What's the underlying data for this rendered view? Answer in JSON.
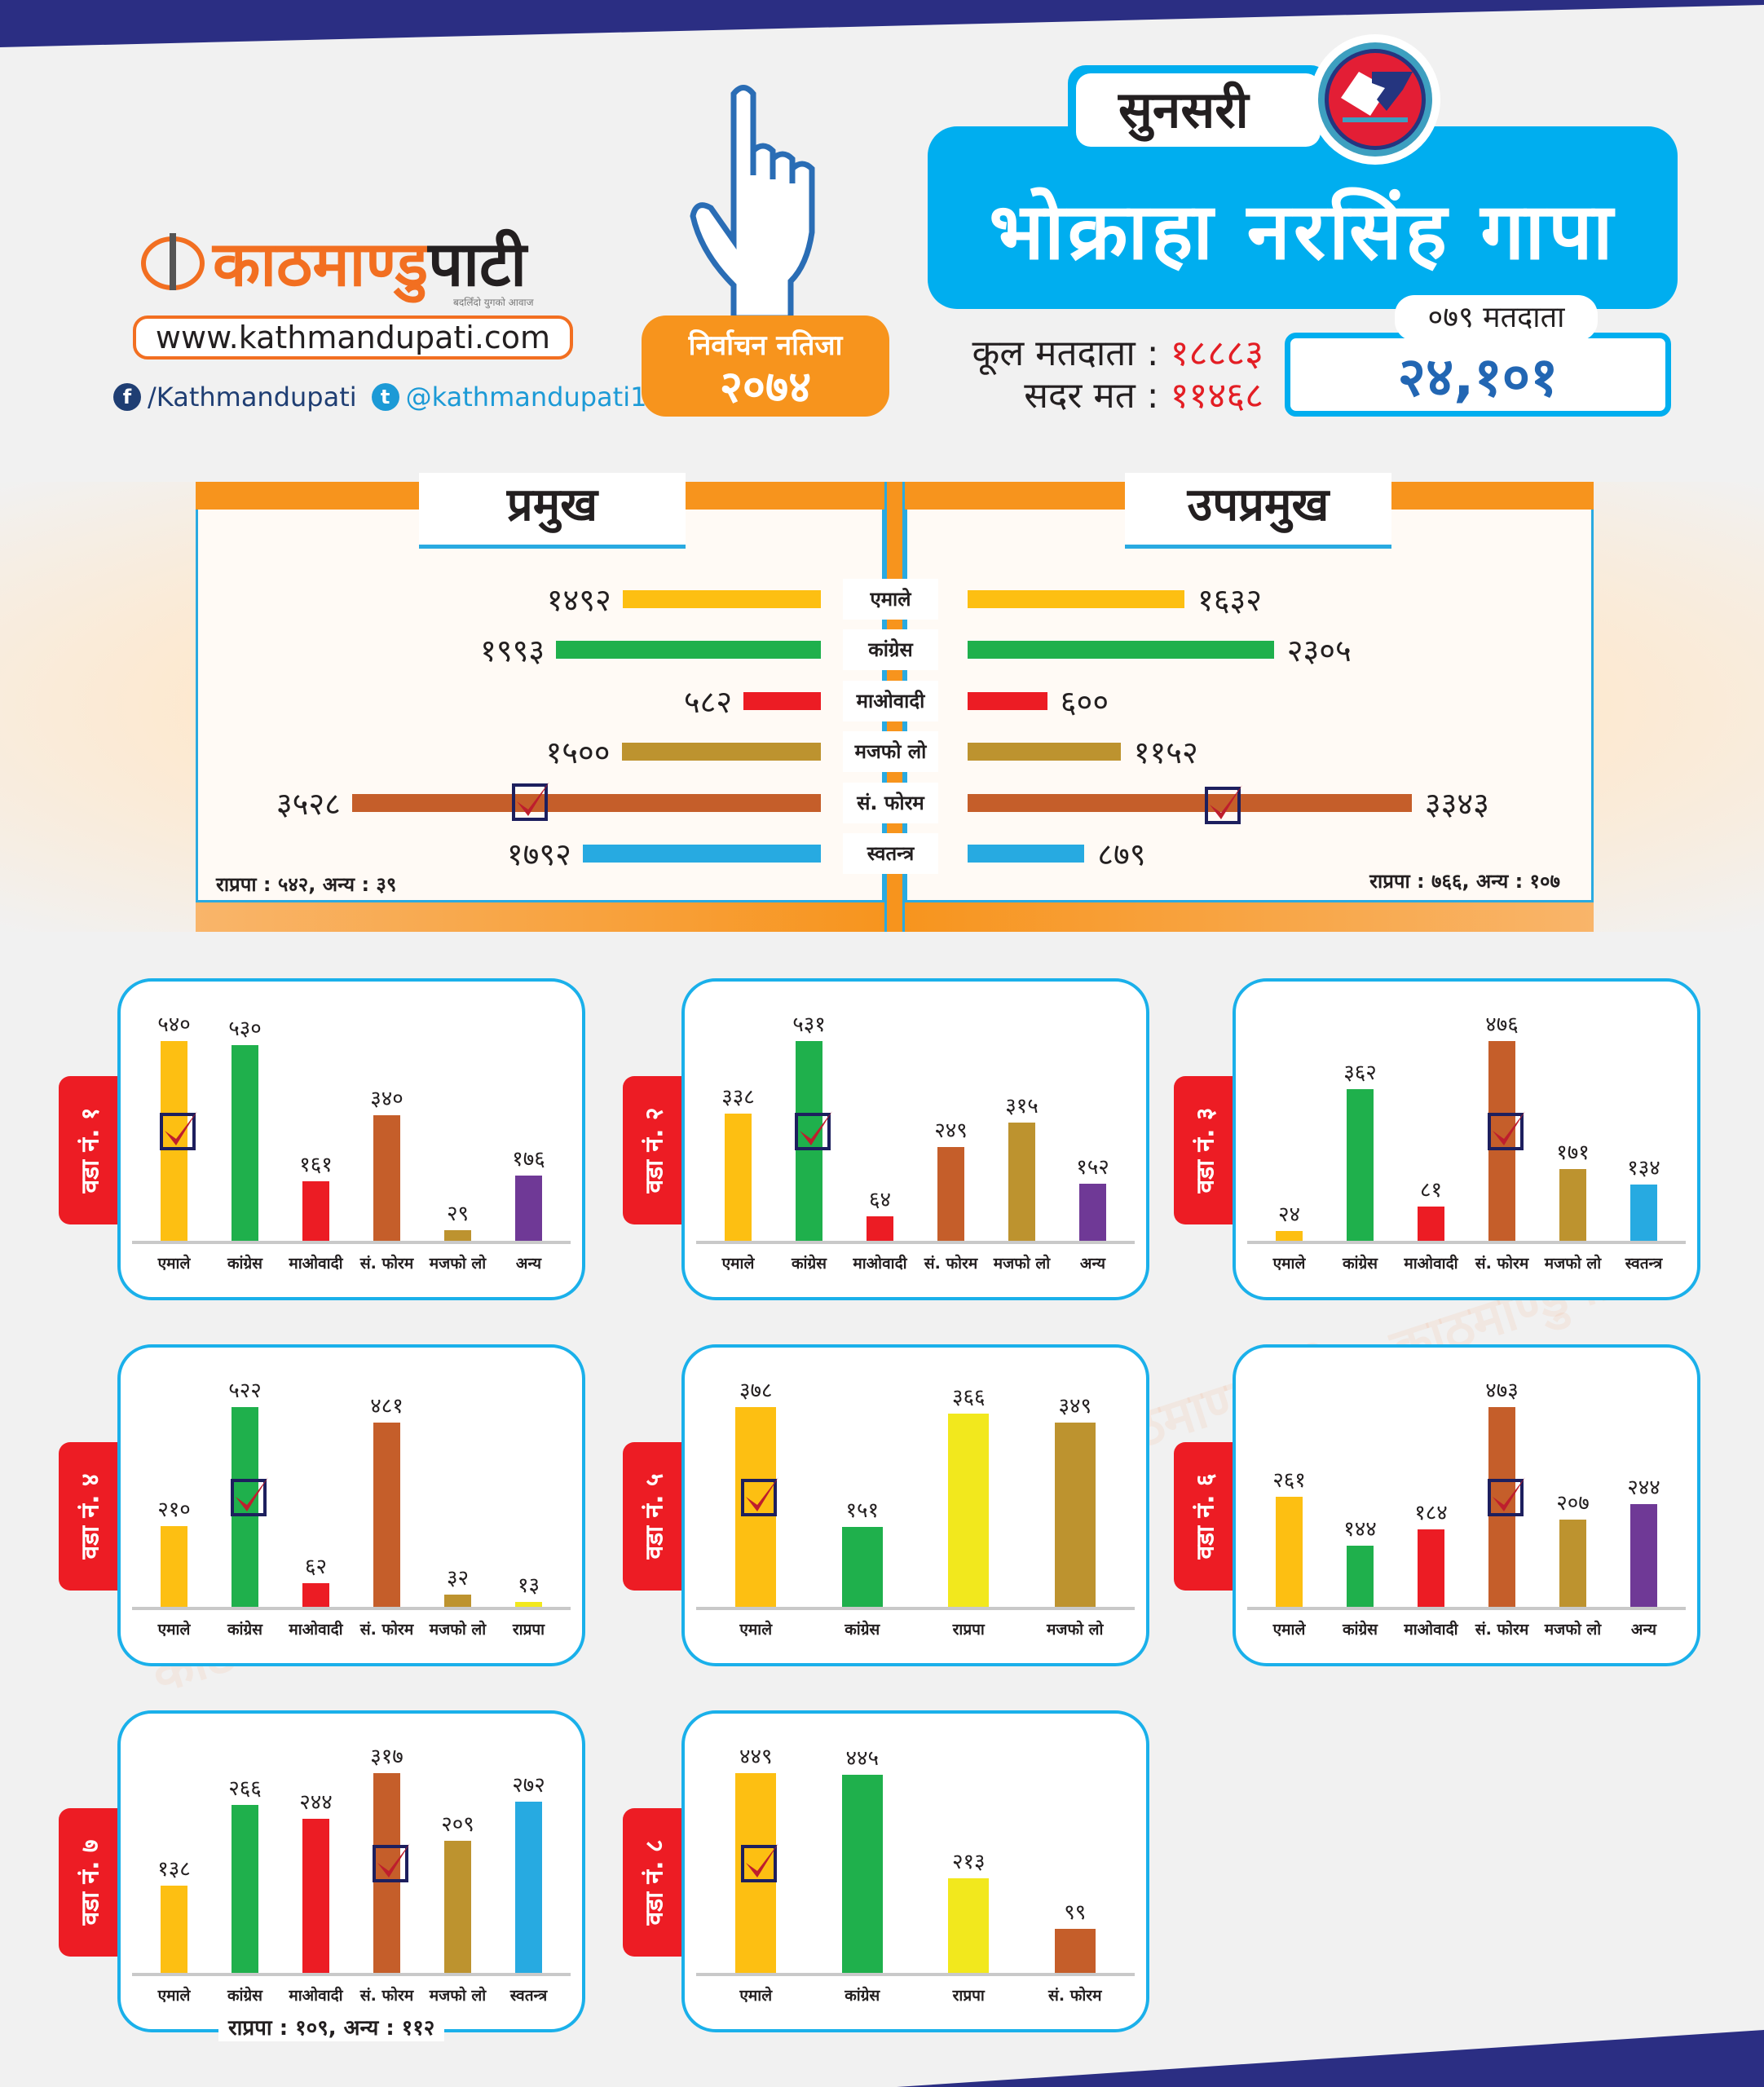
{
  "brand": {
    "logo_text_orange": "काठमाण्डु",
    "logo_text_black": "पाटी",
    "tagline": "बदलिँदो युगको आवाज",
    "url": "www.kathmandupati.com",
    "facebook": "/Kathmandupati",
    "twitter": "@kathmandupati1",
    "watermark": "काठमाण्डुपाटी"
  },
  "badge": {
    "line1": "निर्वाचन नतिजा",
    "line2": "२०७४"
  },
  "header": {
    "district": "सुनसरी",
    "municipality": "भोक्राहा नरसिंह गापा",
    "total_voters_label": "कूल मतदाता :",
    "total_voters": "१८८८३",
    "valid_votes_label": "सदर मत :",
    "valid_votes": "११४६८",
    "voters_079_label": "०७९ मतदाता",
    "voters_079": "२४,१०१"
  },
  "colors": {
    "एमाले": "#fdbf12",
    "कांग्रेस": "#1fb04c",
    "माओवादी": "#ec1c24",
    "मजफो लो": "#bd932f",
    "सं. फोरम": "#c55e2a",
    "स्वतन्त्र": "#27aae1",
    "अन्य": "#6f3996",
    "राप्रपा": "#f2e81d"
  },
  "chart_data": [
    {
      "type": "bar",
      "title": "प्रमुख / उपप्रमुख",
      "categories": [
        "एमाले",
        "कांग्रेस",
        "माओवादी",
        "मजफो लो",
        "सं. फोरम",
        "स्वतन्त्र"
      ],
      "series": [
        {
          "name": "प्रमुख",
          "values": [
            1492,
            1993,
            582,
            1500,
            3528,
            1792
          ],
          "value_labels": [
            "१४९२",
            "१९९३",
            "५८२",
            "१५००",
            "३५२८",
            "१७९२"
          ],
          "winner": "सं. फोरम",
          "note": "राप्रपा : ५४२, अन्य : ३९"
        },
        {
          "name": "उपप्रमुख",
          "values": [
            1632,
            2305,
            600,
            1152,
            3343,
            879
          ],
          "value_labels": [
            "१६३२",
            "२३०५",
            "६००",
            "११५२",
            "३३४३",
            "८७९"
          ],
          "winner": "सं. फोरम",
          "note": "राप्रपा : ७६६, अन्य : १०७"
        }
      ]
    },
    {
      "type": "bar",
      "title": "वडा नं. १",
      "categories": [
        "एमाले",
        "कांग्रेस",
        "माओवादी",
        "सं. फोरम",
        "मजफो लो",
        "अन्य"
      ],
      "values": [
        540,
        530,
        161,
        340,
        29,
        176
      ],
      "value_labels": [
        "५४०",
        "५३०",
        "१६१",
        "३४०",
        "२९",
        "१७६"
      ],
      "winner": "एमाले"
    },
    {
      "type": "bar",
      "title": "वडा नं. २",
      "categories": [
        "एमाले",
        "कांग्रेस",
        "माओवादी",
        "सं. फोरम",
        "मजफो लो",
        "अन्य"
      ],
      "values": [
        338,
        531,
        64,
        249,
        315,
        152
      ],
      "value_labels": [
        "३३८",
        "५३१",
        "६४",
        "२४९",
        "३१५",
        "१५२"
      ],
      "winner": "कांग्रेस"
    },
    {
      "type": "bar",
      "title": "वडा नं. ३",
      "categories": [
        "एमाले",
        "कांग्रेस",
        "माओवादी",
        "सं. फोरम",
        "मजफो लो",
        "स्वतन्त्र"
      ],
      "values": [
        24,
        362,
        81,
        476,
        171,
        134
      ],
      "value_labels": [
        "२४",
        "३६२",
        "८१",
        "४७६",
        "१७१",
        "१३४"
      ],
      "winner": "सं. फोरम"
    },
    {
      "type": "bar",
      "title": "वडा नं. ४",
      "categories": [
        "एमाले",
        "कांग्रेस",
        "माओवादी",
        "सं. फोरम",
        "मजफो लो",
        "राप्रपा"
      ],
      "values": [
        210,
        522,
        62,
        481,
        32,
        13
      ],
      "value_labels": [
        "२१०",
        "५२२",
        "६२",
        "४८१",
        "३२",
        "१३"
      ],
      "winner": "कांग्रेस"
    },
    {
      "type": "bar",
      "title": "वडा नं. ५",
      "categories": [
        "एमाले",
        "कांग्रेस",
        "राप्रपा",
        "मजफो लो"
      ],
      "values": [
        378,
        151,
        366,
        349
      ],
      "value_labels": [
        "३७८",
        "१५१",
        "३६६",
        "३४९"
      ],
      "winner": "एमाले"
    },
    {
      "type": "bar",
      "title": "वडा नं. ६",
      "categories": [
        "एमाले",
        "कांग्रेस",
        "माओवादी",
        "सं. फोरम",
        "मजफो लो",
        "अन्य"
      ],
      "values": [
        261,
        144,
        184,
        473,
        207,
        244
      ],
      "value_labels": [
        "२६१",
        "१४४",
        "१८४",
        "४७३",
        "२०७",
        "२४४"
      ],
      "winner": "सं. फोरम"
    },
    {
      "type": "bar",
      "title": "वडा नं. ७",
      "categories": [
        "एमाले",
        "कांग्रेस",
        "माओवादी",
        "सं. फोरम",
        "मजफो लो",
        "स्वतन्त्र"
      ],
      "values": [
        138,
        266,
        244,
        317,
        209,
        272
      ],
      "value_labels": [
        "१३८",
        "२६६",
        "२४४",
        "३१७",
        "२०९",
        "२७२"
      ],
      "winner": "सं. फोरम",
      "note": "राप्रपा : १०९, अन्य : ११२"
    },
    {
      "type": "bar",
      "title": "वडा नं. ८",
      "categories": [
        "एमाले",
        "कांग्रेस",
        "राप्रपा",
        "सं. फोरम"
      ],
      "values": [
        449,
        445,
        213,
        99
      ],
      "value_labels": [
        "४४९",
        "४४५",
        "२१३",
        "९९"
      ],
      "winner": "एमाले"
    }
  ]
}
